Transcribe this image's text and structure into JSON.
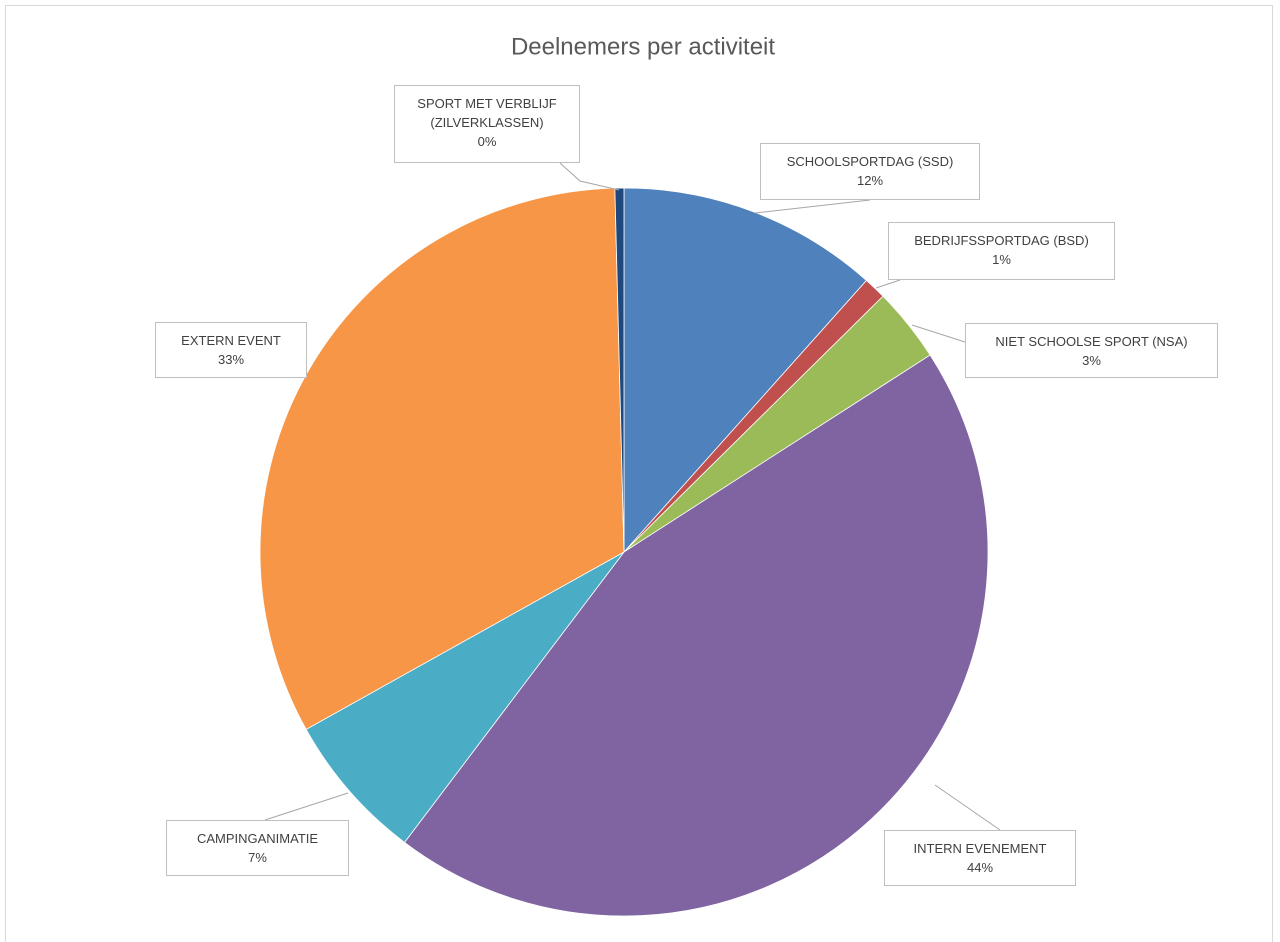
{
  "chart_data": {
    "type": "pie",
    "title": "Deelnemers per activiteit",
    "categories": [
      "SCHOOLSPORTDAG (SSD)",
      "BEDRIJFSSPORTDAG (BSD)",
      "NIET SCHOOLSE SPORT (NSA)",
      "INTERN EVENEMENT",
      "CAMPINGANIMATIE",
      "EXTERN EVENT",
      "SPORT MET VERBLIJF (ZILVERKLASSEN)"
    ],
    "values": [
      11.6,
      1.0,
      3.3,
      44.4,
      6.6,
      32.7,
      0.4
    ],
    "value_labels": [
      "12%",
      "1%",
      "3%",
      "44%",
      "7%",
      "33%",
      "0%"
    ],
    "colors": [
      "#4f81bd",
      "#c0504d",
      "#9bbb59",
      "#8064a2",
      "#4bacc6",
      "#f79646",
      "#1f497d"
    ]
  }
}
